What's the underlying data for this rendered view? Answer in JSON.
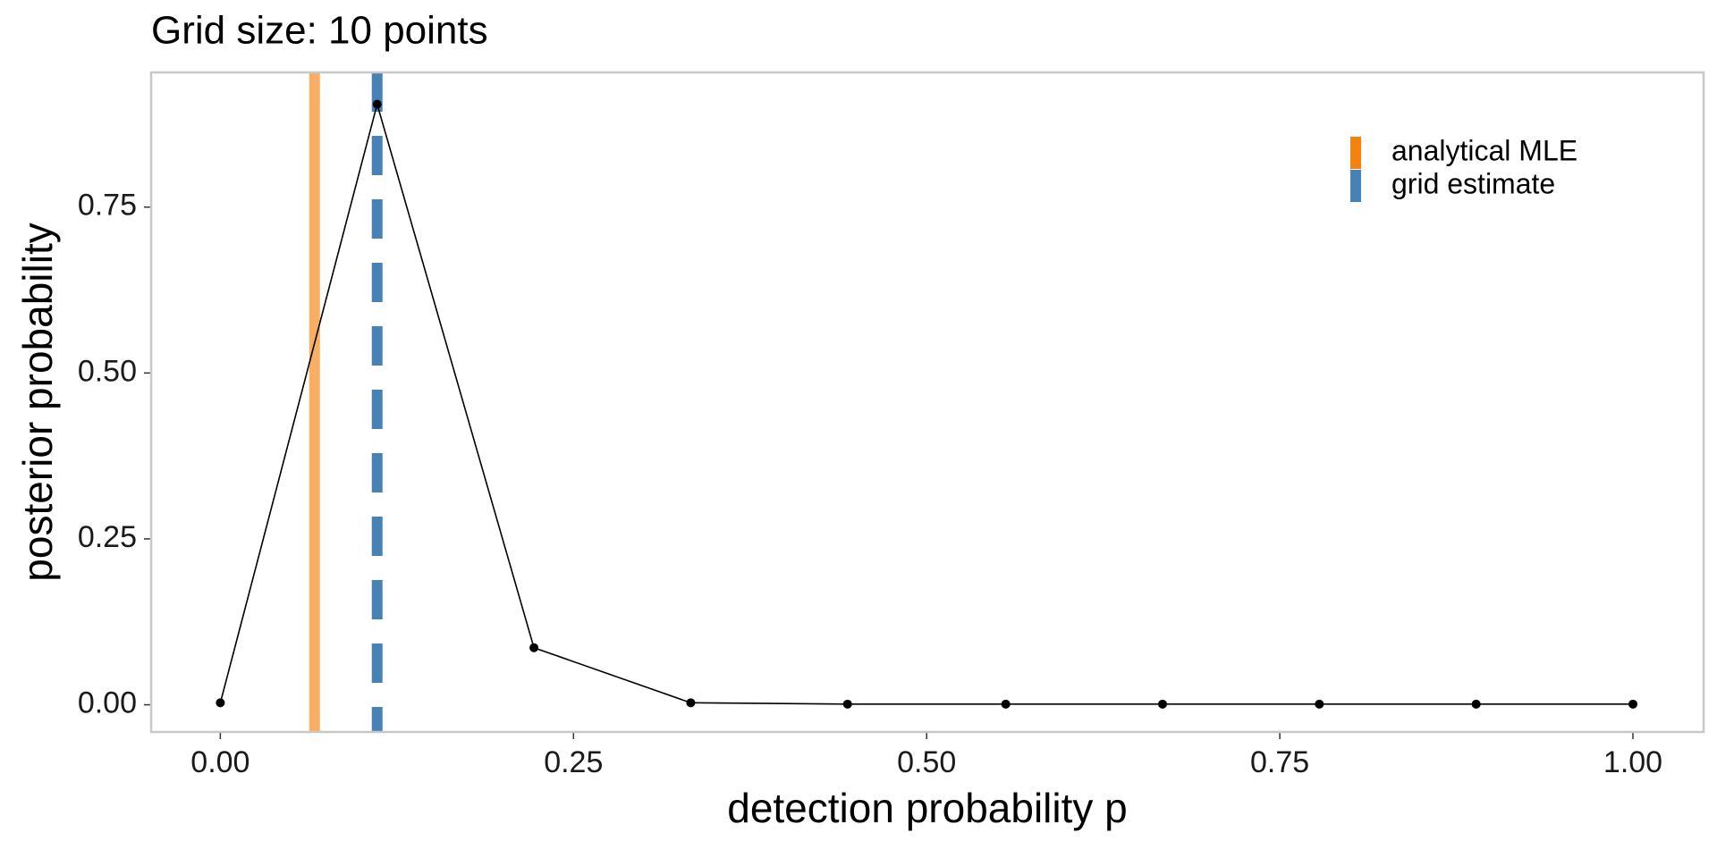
{
  "chart_data": {
    "type": "line",
    "title": "Grid size: 10 points",
    "x_label": "detection probability p",
    "y_label": "posterior probability",
    "x": [
      0,
      0.111,
      0.222,
      0.333,
      0.444,
      0.556,
      0.667,
      0.778,
      0.889,
      1
    ],
    "series": [
      {
        "color": "#000000",
        "values": [
          0.003,
          0.905,
          0.086,
          0.003,
          0.001,
          0.001,
          0.001,
          0.001,
          0.001,
          0.001
        ]
      }
    ],
    "reference_lines": [
      {
        "name": "analytical MLE",
        "value": 0.0667,
        "color": "#f5820f",
        "opacity": 0.65,
        "dashed": false
      },
      {
        "name": "grid estimate",
        "value": 0.111,
        "color": "#4682b4",
        "opacity": 1,
        "dashed": true
      }
    ],
    "xlim": [
      -0.049,
      1.05
    ],
    "ylim": [
      -0.041,
      0.953
    ],
    "xticks": [
      {
        "value": 0,
        "label": "0.00"
      },
      {
        "value": 0.25,
        "label": "0.25"
      },
      {
        "value": 0.5,
        "label": "0.50"
      },
      {
        "value": 0.75,
        "label": "0.75"
      },
      {
        "value": 1,
        "label": "1.00"
      }
    ],
    "yticks": [
      {
        "value": 0,
        "label": "0.00"
      },
      {
        "value": 0.25,
        "label": "0.25"
      },
      {
        "value": 0.5,
        "label": "0.50"
      },
      {
        "value": 0.75,
        "label": "0.75"
      }
    ],
    "grid": false,
    "legend_position": "top-right"
  }
}
